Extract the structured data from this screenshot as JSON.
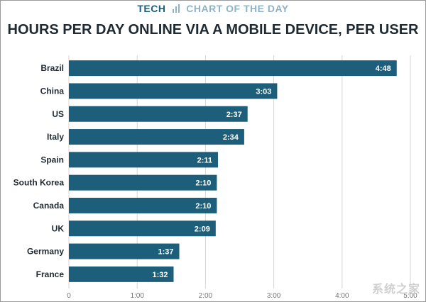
{
  "header": {
    "brand_left": "TECH",
    "brand_right": "CHART OF THE DAY",
    "title": "HOURS PER DAY ONLINE VIA A MOBILE DEVICE, PER USER"
  },
  "watermark": "系统之家",
  "colors": {
    "bar": "#1d5f7a",
    "brand": "#1f5f7a",
    "brand_light": "#8fb3c6",
    "text": "#1f2a33",
    "grid": "#d6d6d6",
    "tick": "#777777"
  },
  "chart_data": {
    "type": "bar",
    "orientation": "horizontal",
    "title": "HOURS PER DAY ONLINE VIA A MOBILE DEVICE, PER USER",
    "categories": [
      "Brazil",
      "China",
      "US",
      "Italy",
      "Spain",
      "South Korea",
      "Canada",
      "UK",
      "Germany",
      "France"
    ],
    "values": [
      288,
      183,
      157,
      154,
      131,
      130,
      130,
      129,
      97,
      92
    ],
    "value_unit": "minutes",
    "data_labels": [
      "4:48",
      "3:03",
      "2:37",
      "2:34",
      "2:11",
      "2:10",
      "2:10",
      "2:09",
      "1:37",
      "1:32"
    ],
    "x_ticks": [
      0,
      60,
      120,
      180,
      240,
      300
    ],
    "x_tick_labels": [
      "0",
      "1:00",
      "2:00",
      "3:00",
      "4:00",
      "5:00"
    ],
    "xlim": [
      0,
      300
    ],
    "xlabel": "",
    "ylabel": "",
    "grid": "vertical",
    "legend": "none"
  }
}
